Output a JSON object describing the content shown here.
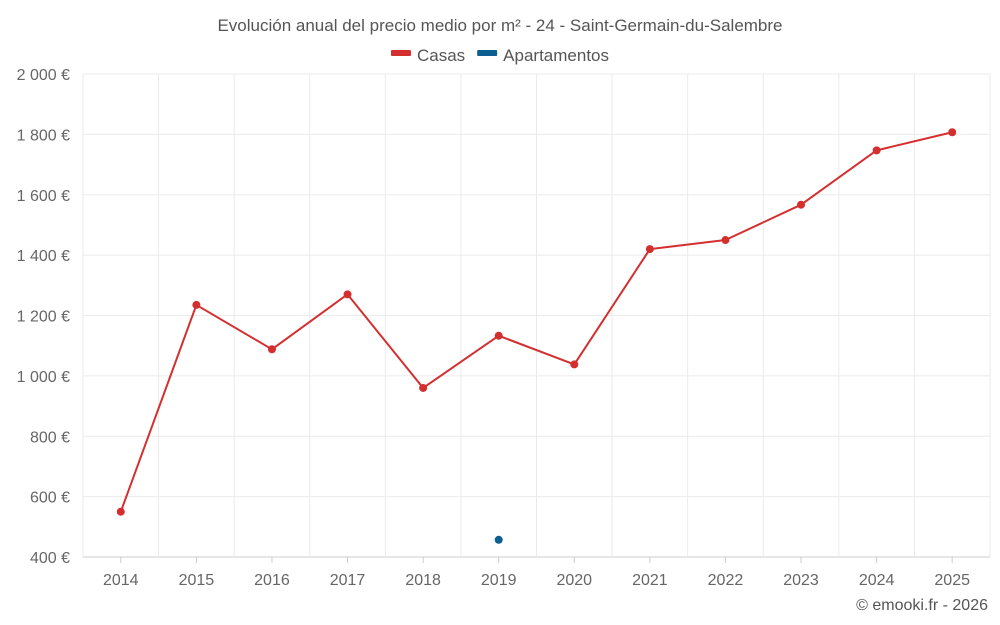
{
  "chart_data": {
    "type": "line",
    "title": "Evolución anual del precio medio por m² - 24 - Saint-Germain-du-Salembre",
    "categories": [
      "2014",
      "2015",
      "2016",
      "2017",
      "2018",
      "2019",
      "2020",
      "2021",
      "2022",
      "2023",
      "2024",
      "2025"
    ],
    "series": [
      {
        "name": "Casas",
        "color": "#d32f2f",
        "values": [
          550,
          1235,
          1088,
          1270,
          960,
          1133,
          1038,
          1420,
          1450,
          1567,
          1747,
          1807
        ]
      },
      {
        "name": "Apartamentos",
        "color": "#0d5e91",
        "values": [
          null,
          null,
          null,
          null,
          null,
          457,
          null,
          null,
          null,
          null,
          null,
          null
        ]
      }
    ],
    "ylim": [
      400,
      2000
    ],
    "yticks": [
      400,
      600,
      800,
      1000,
      1200,
      1400,
      1600,
      1800,
      2000
    ],
    "ytick_labels": [
      "400 €",
      "600 €",
      "800 €",
      "1 000 €",
      "1 200 €",
      "1 400 €",
      "1 600 €",
      "1 800 €",
      "2 000 €"
    ],
    "xlabel": "",
    "ylabel": "",
    "grid": true,
    "legend_position": "top-center"
  },
  "credit": "© emooki.fr - 2026"
}
